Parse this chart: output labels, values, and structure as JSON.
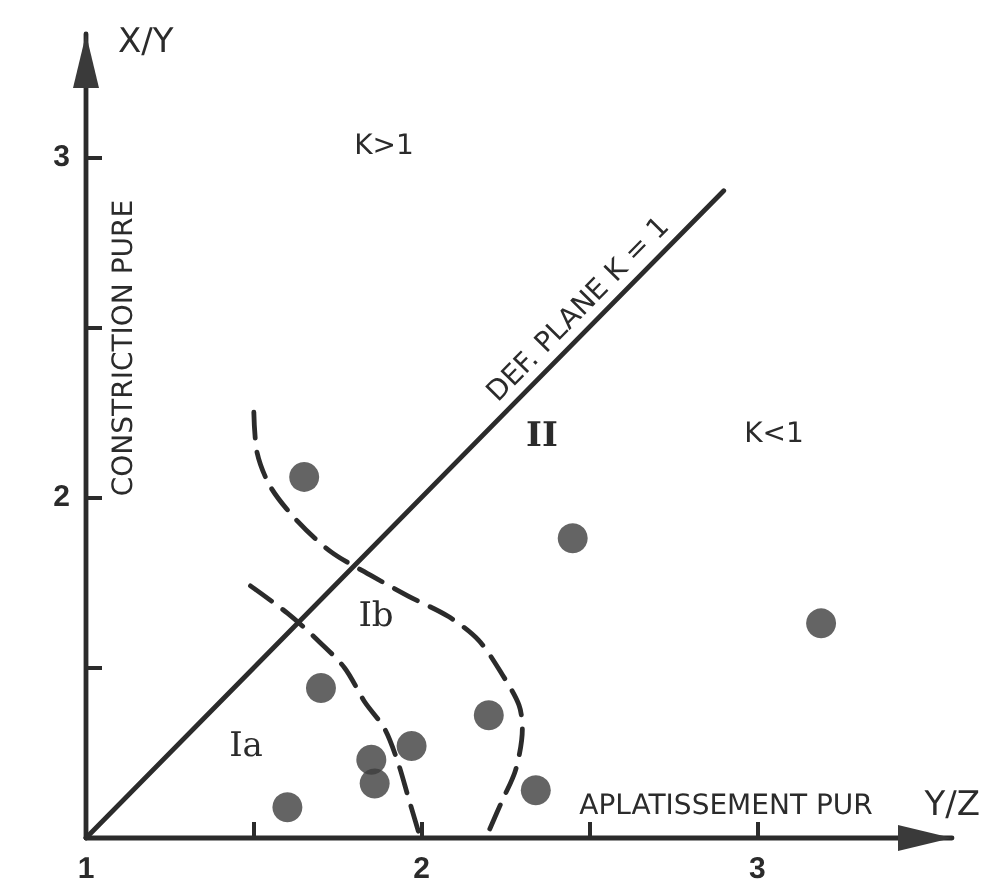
{
  "chart_data": {
    "type": "scatter",
    "xlabel": "Y/Z",
    "ylabel": "X/Y",
    "xlim": [
      1,
      3.58
    ],
    "ylim": [
      1,
      3.36
    ],
    "xticks": [
      1,
      {
        "value": 1.5,
        "label": null
      },
      2,
      {
        "value": 2.5,
        "label": null
      },
      3
    ],
    "yticks": [
      {
        "value": 1.5,
        "label": null
      },
      2,
      {
        "value": 2.5,
        "label": null
      },
      3
    ],
    "grid": false,
    "legend": false,
    "marker": "circle",
    "series": [
      {
        "color": "#3d3d3d",
        "x": [
          1.65,
          1.7,
          1.6,
          1.85,
          1.86,
          1.97,
          2.2,
          2.34,
          2.45,
          3.19
        ],
        "values": [
          2.06,
          1.44,
          1.09,
          1.23,
          1.16,
          1.27,
          1.36,
          1.14,
          1.88,
          1.63
        ]
      },
      {
        "type": "line",
        "name": "DEF. PLANE K = 1",
        "color": "#2b2b2b",
        "x": [
          1,
          2.9
        ],
        "values": [
          1,
          2.9
        ],
        "marker": "none",
        "line_style": "solid"
      },
      {
        "type": "line",
        "color": "#2b2b2b",
        "x": [
          1.49,
          1.6,
          1.68,
          1.77,
          1.83,
          1.89,
          1.93,
          1.96,
          1.99
        ],
        "values": [
          1.74,
          1.66,
          1.59,
          1.5,
          1.4,
          1.32,
          1.22,
          1.12,
          1.02
        ],
        "marker": "none",
        "line_style": "dashed"
      },
      {
        "type": "line",
        "color": "#2b2b2b",
        "x": [
          1.5,
          1.51,
          1.55,
          1.63,
          1.73,
          1.85,
          1.96,
          2.08,
          2.17,
          2.24,
          2.29,
          2.3,
          2.28,
          2.24,
          2.2
        ],
        "values": [
          2.25,
          2.13,
          2.03,
          1.93,
          1.84,
          1.77,
          1.71,
          1.65,
          1.58,
          1.48,
          1.39,
          1.32,
          1.2,
          1.11,
          1.02
        ],
        "marker": "none",
        "line_style": "dashed"
      }
    ],
    "annotations": [
      "K>1",
      "K<1",
      "II",
      "Ib",
      "Ia",
      "CONSTRICTION PURE",
      "APLATISSEMENT PUR"
    ]
  }
}
